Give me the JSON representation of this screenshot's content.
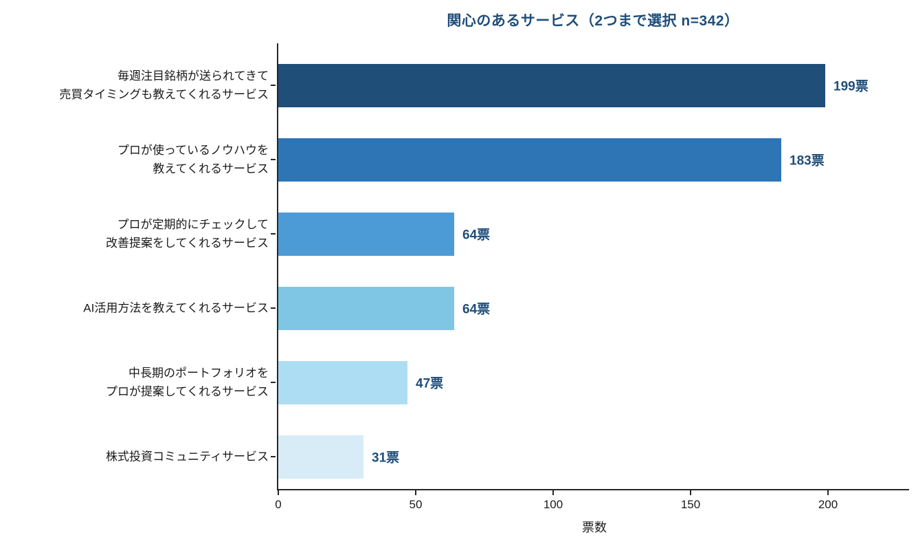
{
  "chart_data": {
    "type": "bar",
    "orientation": "horizontal",
    "title": "関心のあるサービス（2つまで選択 n=342）",
    "categories": [
      [
        "毎週注目銘柄が送られてきて",
        "売買タイミングも教えてくれるサービス"
      ],
      [
        "プロが使っているノウハウを",
        "教えてくれるサービス"
      ],
      [
        "プロが定期的にチェックして",
        "改善提案をしてくれるサービス"
      ],
      [
        "AI活用方法を教えてくれるサービス"
      ],
      [
        "中長期のポートフォリオを",
        "プロが提案してくれるサービス"
      ],
      [
        "株式投資コミュニティサービス"
      ]
    ],
    "values": [
      199,
      183,
      64,
      64,
      47,
      31
    ],
    "value_labels": [
      "199票",
      "183票",
      "64票",
      "64票",
      "47票",
      "31票"
    ],
    "bar_colors": [
      "#1F4E79",
      "#2E75B6",
      "#4C9BD6",
      "#7EC6E3",
      "#ADDDF3",
      "#D8ECF8"
    ],
    "xlabel": "票数",
    "xticks": [
      0,
      50,
      100,
      150,
      200
    ],
    "xtick_labels": [
      "0",
      "50",
      "100",
      "150",
      "200"
    ],
    "xlim": [
      0,
      230
    ],
    "grid": false,
    "legend": "none",
    "title_color": "#1F4E79",
    "value_label_color": "#1F4E79",
    "axis_color": "#262626"
  }
}
